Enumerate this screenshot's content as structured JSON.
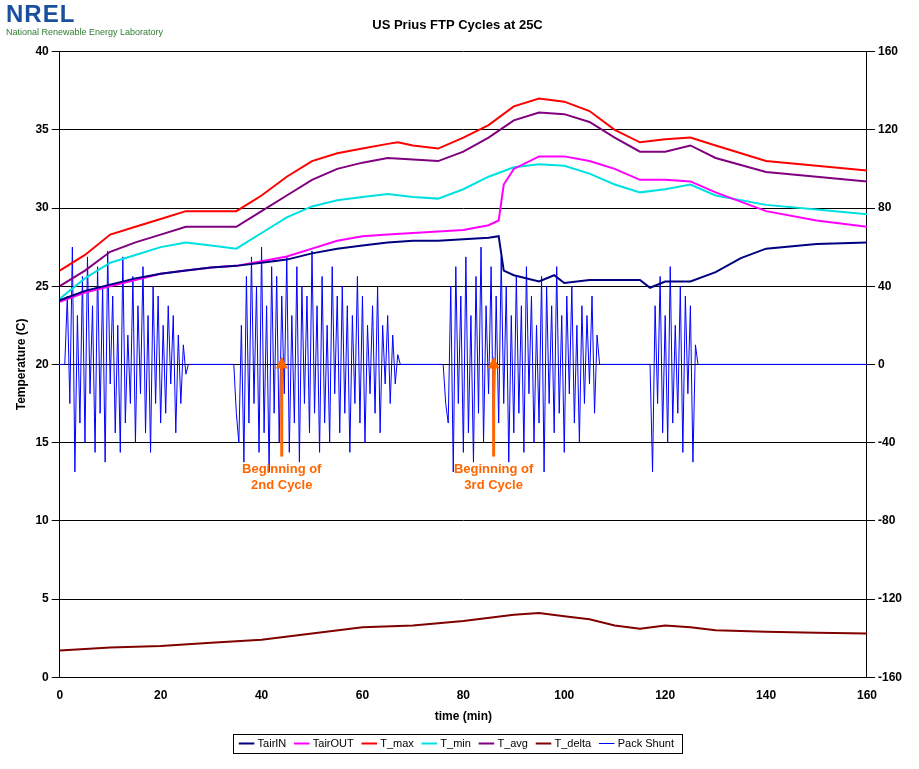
{
  "chart_data": {
    "type": "line",
    "title": "US Prius FTP Cycles at 25C",
    "logo": {
      "name": "NREL",
      "text": "National Renewable Energy Laboratory"
    },
    "x_label": "time (min)",
    "y_label": "Temperature (C)",
    "xlim": [
      0,
      160
    ],
    "xticks": [
      0,
      20,
      40,
      60,
      80,
      100,
      120,
      140,
      160
    ],
    "ylim": [
      0,
      40
    ],
    "yticks": [
      0,
      5,
      10,
      15,
      20,
      25,
      30,
      35,
      40
    ],
    "y2lim": [
      -160,
      160
    ],
    "y2ticks": [
      -160,
      -120,
      -80,
      -40,
      0,
      40,
      80,
      120,
      160
    ],
    "grid": true,
    "legend": "bottom",
    "annotations": [
      {
        "text": "Beginning of 2nd Cycle",
        "x": 44,
        "y": 20.5
      },
      {
        "text": "Beginning of 3rd Cycle",
        "x": 86,
        "y": 20.5
      }
    ],
    "series": [
      {
        "name": "TairIN",
        "color": "#000080",
        "x": [
          0,
          5,
          10,
          15,
          20,
          25,
          30,
          35,
          40,
          45,
          50,
          55,
          60,
          65,
          70,
          75,
          80,
          85,
          87,
          88,
          90,
          95,
          98,
          100,
          105,
          110,
          115,
          117,
          120,
          125,
          130,
          135,
          140,
          150,
          160
        ],
        "values": [
          24.1,
          24.7,
          25.1,
          25.5,
          25.8,
          26,
          26.2,
          26.3,
          26.5,
          26.7,
          27.1,
          27.4,
          27.6,
          27.8,
          27.9,
          27.9,
          28,
          28.1,
          28.2,
          26,
          25.7,
          25.3,
          25.7,
          25.2,
          25.4,
          25.4,
          25.4,
          24.9,
          25.3,
          25.3,
          25.9,
          26.8,
          27.4,
          27.7,
          27.8
        ]
      },
      {
        "name": "TairOUT",
        "color": "#ff00ff",
        "x": [
          0,
          5,
          10,
          15,
          20,
          25,
          30,
          35,
          40,
          45,
          50,
          55,
          60,
          65,
          70,
          75,
          80,
          85,
          87,
          88,
          90,
          95,
          100,
          105,
          110,
          115,
          120,
          125,
          130,
          140,
          150,
          160
        ],
        "values": [
          24,
          24.6,
          25,
          25.4,
          25.8,
          26,
          26.2,
          26.3,
          26.6,
          26.9,
          27.4,
          27.9,
          28.2,
          28.3,
          28.4,
          28.5,
          28.6,
          28.9,
          29.2,
          31.5,
          32.5,
          33.3,
          33.3,
          33,
          32.5,
          31.8,
          31.8,
          31.7,
          31,
          29.8,
          29.2,
          28.8
        ]
      },
      {
        "name": "T_max",
        "color": "#ff0000",
        "x": [
          0,
          5,
          10,
          15,
          20,
          25,
          30,
          35,
          40,
          45,
          50,
          55,
          60,
          65,
          67,
          70,
          75,
          80,
          85,
          90,
          95,
          100,
          105,
          110,
          115,
          120,
          125,
          130,
          140,
          150,
          160
        ],
        "values": [
          26,
          27,
          28.3,
          28.8,
          29.3,
          29.8,
          29.8,
          29.8,
          30.8,
          32,
          33,
          33.5,
          33.8,
          34.1,
          34.2,
          34,
          33.8,
          34.5,
          35.3,
          36.5,
          37,
          36.8,
          36.2,
          35,
          34.2,
          34.4,
          34.5,
          34,
          33,
          32.7,
          32.4
        ]
      },
      {
        "name": "T_min",
        "color": "#00e0e0",
        "x": [
          0,
          5,
          10,
          15,
          20,
          25,
          30,
          35,
          40,
          45,
          50,
          55,
          60,
          65,
          70,
          75,
          80,
          85,
          90,
          95,
          100,
          105,
          110,
          115,
          120,
          125,
          130,
          140,
          150,
          160
        ],
        "values": [
          24.2,
          25.5,
          26.5,
          27,
          27.5,
          27.8,
          27.6,
          27.4,
          28.4,
          29.4,
          30.1,
          30.5,
          30.7,
          30.9,
          30.7,
          30.6,
          31.2,
          32,
          32.6,
          32.8,
          32.7,
          32.2,
          31.5,
          31,
          31.2,
          31.5,
          30.8,
          30.2,
          29.9,
          29.6
        ]
      },
      {
        "name": "T_avg",
        "color": "#800080",
        "x": [
          0,
          5,
          10,
          15,
          20,
          25,
          30,
          35,
          40,
          45,
          50,
          55,
          60,
          65,
          70,
          75,
          80,
          85,
          90,
          95,
          100,
          105,
          110,
          115,
          120,
          125,
          130,
          140,
          150,
          160
        ],
        "values": [
          25,
          26,
          27.2,
          27.8,
          28.3,
          28.8,
          28.8,
          28.8,
          29.8,
          30.8,
          31.8,
          32.5,
          32.9,
          33.2,
          33.1,
          33,
          33.6,
          34.5,
          35.6,
          36.1,
          36,
          35.5,
          34.5,
          33.6,
          33.6,
          34,
          33.2,
          32.3,
          32,
          31.7
        ]
      },
      {
        "name": "T_delta",
        "color": "#800000",
        "x": [
          0,
          10,
          20,
          30,
          40,
          50,
          60,
          70,
          80,
          90,
          95,
          100,
          105,
          110,
          115,
          120,
          125,
          130,
          140,
          150,
          160
        ],
        "values": [
          1.7,
          1.9,
          2,
          2.2,
          2.4,
          2.8,
          3.2,
          3.3,
          3.6,
          4,
          4.1,
          3.9,
          3.7,
          3.3,
          3.1,
          3.3,
          3.2,
          3,
          2.9,
          2.85,
          2.8
        ]
      },
      {
        "name": "Pack Shunt",
        "color": "#0000ff",
        "axis": "y2",
        "x": [
          0,
          1,
          1.5,
          2,
          2.5,
          3,
          3.5,
          4,
          4.5,
          5,
          5.5,
          6,
          6.5,
          7,
          7.5,
          8,
          8.5,
          9,
          9.5,
          10,
          10.5,
          11,
          11.5,
          12,
          12.5,
          13,
          13.5,
          14,
          14.5,
          15,
          15.5,
          16,
          16.5,
          17,
          17.5,
          18,
          18.5,
          19,
          19.5,
          20,
          20.5,
          21,
          21.5,
          22,
          22.5,
          23,
          23.5,
          24,
          24.5,
          25,
          25.5,
          34.5,
          35,
          35.5,
          36,
          36.5,
          37,
          37.5,
          38,
          38.5,
          39,
          39.5,
          40,
          40.5,
          41,
          41.5,
          42,
          42.5,
          43,
          43.5,
          44,
          44.5,
          45,
          45.5,
          46,
          46.5,
          47,
          47.5,
          48,
          48.5,
          49,
          49.5,
          50,
          50.5,
          51,
          51.5,
          52,
          52.5,
          53,
          53.5,
          54,
          54.5,
          55,
          55.5,
          56,
          56.5,
          57,
          57.5,
          58,
          58.5,
          59,
          59.5,
          60,
          60.5,
          61,
          61.5,
          62,
          62.5,
          63,
          63.5,
          64,
          64.5,
          65,
          65.5,
          66,
          66.5,
          67,
          67.5,
          76,
          76.5,
          77,
          77.5,
          78,
          78.5,
          79,
          79.5,
          80,
          80.5,
          81,
          81.5,
          82,
          82.5,
          83,
          83.5,
          84,
          84.5,
          85,
          85.5,
          86,
          86.5,
          87,
          87.5,
          88,
          88.5,
          89,
          89.5,
          90,
          90.5,
          91,
          91.5,
          92,
          92.5,
          93,
          93.5,
          94,
          94.5,
          95,
          95.5,
          96,
          96.5,
          97,
          97.5,
          98,
          98.5,
          99,
          99.5,
          100,
          100.5,
          101,
          101.5,
          102,
          102.5,
          103,
          103.5,
          104,
          104.5,
          105,
          105.5,
          106,
          106.5,
          107,
          107.5,
          117,
          117.5,
          118,
          118.5,
          119,
          119.5,
          120,
          120.5,
          121,
          121.5,
          122,
          122.5,
          123,
          123.5,
          124,
          124.5,
          125,
          125.5,
          126,
          126.5,
          160
        ],
        "values": [
          0,
          0,
          35,
          -20,
          60,
          -55,
          25,
          -30,
          45,
          -40,
          55,
          -15,
          30,
          -45,
          50,
          -25,
          40,
          -50,
          58,
          -10,
          35,
          -35,
          20,
          -45,
          55,
          -30,
          15,
          -20,
          45,
          -40,
          30,
          -15,
          50,
          -35,
          25,
          -45,
          40,
          -20,
          35,
          -30,
          20,
          -25,
          30,
          -10,
          25,
          -35,
          15,
          -20,
          10,
          -5,
          0,
          0,
          -25,
          -40,
          20,
          -50,
          45,
          -30,
          55,
          -20,
          40,
          -45,
          60,
          -35,
          30,
          -55,
          50,
          -25,
          45,
          -40,
          35,
          -15,
          55,
          -45,
          25,
          -30,
          50,
          -50,
          40,
          -20,
          35,
          -35,
          58,
          -25,
          30,
          -45,
          45,
          -30,
          20,
          -40,
          50,
          -15,
          35,
          -35,
          40,
          -25,
          30,
          -45,
          25,
          -20,
          45,
          -30,
          35,
          -40,
          20,
          -15,
          30,
          -25,
          40,
          -35,
          20,
          -10,
          25,
          -20,
          15,
          -10,
          5,
          0,
          0,
          -20,
          -30,
          40,
          -55,
          50,
          -20,
          35,
          -45,
          55,
          -35,
          25,
          -50,
          45,
          -25,
          60,
          -40,
          30,
          -15,
          50,
          -45,
          35,
          -30,
          55,
          -20,
          40,
          -50,
          25,
          -35,
          45,
          -25,
          30,
          -45,
          50,
          -15,
          35,
          -40,
          20,
          -30,
          45,
          -55,
          40,
          -20,
          30,
          -35,
          50,
          -25,
          25,
          -45,
          35,
          -15,
          40,
          -30,
          20,
          -40,
          30,
          -20,
          25,
          -10,
          35,
          -25,
          15,
          0,
          0,
          0,
          -55,
          30,
          -20,
          45,
          -35,
          25,
          -40,
          50,
          -30,
          20,
          -25,
          40,
          -45,
          35,
          -15,
          30,
          -50,
          10,
          0,
          0
        ]
      }
    ]
  }
}
